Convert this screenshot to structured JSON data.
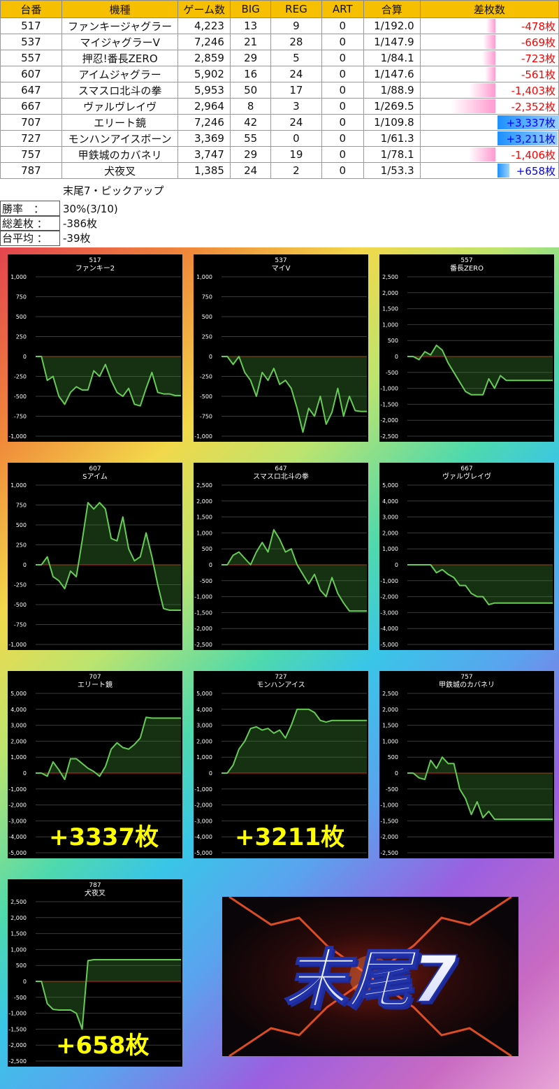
{
  "table": {
    "headers": [
      "台番",
      "機種",
      "ゲーム数",
      "BIG",
      "REG",
      "ART",
      "合算",
      "差枚数"
    ],
    "rows": [
      {
        "no": "517",
        "model": "ファンキージャグラー",
        "games": "4,223",
        "big": "13",
        "reg": "9",
        "art": "0",
        "combined": "1/192.0",
        "diff": "-478枚",
        "diffValue": -478
      },
      {
        "no": "537",
        "model": "マイジャグラーV",
        "games": "7,246",
        "big": "21",
        "reg": "28",
        "art": "0",
        "combined": "1/147.9",
        "diff": "-669枚",
        "diffValue": -669
      },
      {
        "no": "557",
        "model": "押忍!番長ZERO",
        "games": "2,859",
        "big": "29",
        "reg": "5",
        "art": "0",
        "combined": "1/84.1",
        "diff": "-723枚",
        "diffValue": -723
      },
      {
        "no": "607",
        "model": "アイムジャグラー",
        "games": "5,902",
        "big": "16",
        "reg": "24",
        "art": "0",
        "combined": "1/147.6",
        "diff": "-561枚",
        "diffValue": -561
      },
      {
        "no": "647",
        "model": "スマスロ北斗の拳",
        "games": "5,953",
        "big": "50",
        "reg": "17",
        "art": "0",
        "combined": "1/88.9",
        "diff": "-1,403枚",
        "diffValue": -1403
      },
      {
        "no": "667",
        "model": "ヴァルヴレイヴ",
        "games": "2,964",
        "big": "8",
        "reg": "3",
        "art": "0",
        "combined": "1/269.5",
        "diff": "-2,352枚",
        "diffValue": -2352
      },
      {
        "no": "707",
        "model": "エリート鏡",
        "games": "7,246",
        "big": "42",
        "reg": "24",
        "art": "0",
        "combined": "1/109.8",
        "diff": "+3,337枚",
        "diffValue": 3337
      },
      {
        "no": "727",
        "model": "モンハンアイスボーン",
        "games": "3,369",
        "big": "55",
        "reg": "0",
        "art": "0",
        "combined": "1/61.3",
        "diff": "+3,211枚",
        "diffValue": 3211
      },
      {
        "no": "757",
        "model": "甲鉄城のカバネリ",
        "games": "3,747",
        "big": "29",
        "reg": "19",
        "art": "0",
        "combined": "1/78.1",
        "diff": "-1,406枚",
        "diffValue": -1406
      },
      {
        "no": "787",
        "model": "犬夜叉",
        "games": "1,385",
        "big": "24",
        "reg": "2",
        "art": "0",
        "combined": "1/53.3",
        "diff": "+658枚",
        "diffValue": 658
      }
    ]
  },
  "summary": {
    "title": "末尾7・ピックアップ",
    "rows": [
      {
        "label": "勝率　：",
        "value": "30%(3/10)"
      },
      {
        "label": "総差枚 ：",
        "value": "-386枚"
      },
      {
        "label": "台平均 ：",
        "value": "-39枚"
      }
    ]
  },
  "colors": {
    "header": "#f6c000",
    "negative": "#ff0000",
    "positive": "#0000ff",
    "line": "#66cc55",
    "zero": "#cc2222"
  },
  "chart_data": [
    {
      "type": "line",
      "id": "517",
      "title": "ファンキー2",
      "ylim": [
        -1000,
        1000
      ],
      "yticks": [
        1000,
        750,
        500,
        250,
        0,
        -250,
        -500,
        -750,
        -1000
      ],
      "x": [
        0,
        4,
        8,
        12,
        16,
        20,
        24,
        28,
        32,
        36,
        40,
        44,
        48,
        52,
        56,
        60,
        64,
        68,
        72,
        76,
        80,
        84,
        88,
        92,
        96,
        100
      ],
      "values": [
        0,
        0,
        -300,
        -250,
        -500,
        -600,
        -450,
        -380,
        -420,
        -420,
        -180,
        -250,
        -100,
        -300,
        -450,
        -500,
        -400,
        -600,
        -620,
        -400,
        -200,
        -450,
        -470,
        -470,
        -490,
        -490
      ]
    },
    {
      "type": "line",
      "id": "537",
      "title": "マイV",
      "ylim": [
        -1000,
        1000
      ],
      "yticks": [
        1000,
        750,
        500,
        250,
        0,
        -250,
        -500,
        -750,
        -1000
      ],
      "x": [
        0,
        4,
        8,
        12,
        16,
        20,
        24,
        28,
        32,
        36,
        40,
        44,
        48,
        52,
        56,
        60,
        64,
        68,
        72,
        76,
        80,
        84,
        88,
        92,
        96,
        100
      ],
      "values": [
        0,
        0,
        -100,
        0,
        -200,
        -300,
        -500,
        -200,
        -300,
        -150,
        -350,
        -300,
        -400,
        -650,
        -950,
        -650,
        -750,
        -500,
        -850,
        -700,
        -400,
        -750,
        -500,
        -680,
        -690,
        -690
      ]
    },
    {
      "type": "line",
      "id": "557",
      "title": "番長ZERO",
      "ylim": [
        -2500,
        2500
      ],
      "yticks": [
        2500,
        2000,
        1500,
        1000,
        500,
        0,
        -500,
        -1000,
        -1500,
        -2000,
        -2500
      ],
      "x": [
        0,
        4,
        8,
        12,
        16,
        20,
        24,
        28,
        32,
        36,
        40,
        44,
        48,
        52,
        56,
        60,
        64,
        68,
        72,
        76,
        80,
        84,
        88,
        92,
        96,
        100
      ],
      "values": [
        0,
        0,
        -100,
        150,
        50,
        350,
        200,
        -200,
        -500,
        -800,
        -1100,
        -1200,
        -1200,
        -1200,
        -700,
        -1000,
        -600,
        -750,
        -750,
        -750,
        -750,
        -750,
        -750,
        -750,
        -750,
        -750
      ]
    },
    {
      "type": "line",
      "id": "607",
      "title": "Sアイム",
      "ylim": [
        -1000,
        1000
      ],
      "yticks": [
        1000,
        750,
        500,
        250,
        0,
        -250,
        -500,
        -750,
        -1000
      ],
      "x": [
        0,
        4,
        8,
        12,
        16,
        20,
        24,
        28,
        32,
        36,
        40,
        44,
        48,
        52,
        56,
        60,
        64,
        68,
        72,
        76,
        80,
        84,
        88,
        92,
        96,
        100
      ],
      "values": [
        0,
        0,
        100,
        -150,
        -200,
        -300,
        -80,
        -150,
        300,
        780,
        700,
        780,
        700,
        330,
        300,
        600,
        200,
        50,
        100,
        400,
        100,
        -250,
        -550,
        -570,
        -570,
        -570
      ]
    },
    {
      "type": "line",
      "id": "647",
      "title": "スマスロ北斗の拳",
      "ylim": [
        -2500,
        2500
      ],
      "yticks": [
        2500,
        2000,
        1500,
        1000,
        500,
        0,
        -500,
        -1000,
        -1500,
        -2000,
        -2500
      ],
      "x": [
        0,
        4,
        8,
        12,
        16,
        20,
        24,
        28,
        32,
        36,
        40,
        44,
        48,
        52,
        56,
        60,
        64,
        68,
        72,
        76,
        80,
        84,
        88,
        92,
        96,
        100
      ],
      "values": [
        0,
        0,
        300,
        400,
        200,
        0,
        400,
        700,
        400,
        1100,
        800,
        400,
        500,
        0,
        -300,
        -600,
        -300,
        -800,
        -1000,
        -400,
        -900,
        -1200,
        -1450,
        -1450,
        -1450,
        -1450
      ]
    },
    {
      "type": "line",
      "id": "667",
      "title": "ヴァルヴレイヴ",
      "ylim": [
        -5000,
        5000
      ],
      "yticks": [
        5000,
        4000,
        3000,
        2000,
        1000,
        0,
        -1000,
        -2000,
        -3000,
        -4000,
        -5000
      ],
      "x": [
        0,
        4,
        8,
        12,
        16,
        20,
        24,
        28,
        32,
        36,
        40,
        44,
        48,
        52,
        56,
        60,
        64,
        68,
        72,
        76,
        80,
        84,
        88,
        92,
        96,
        100
      ],
      "values": [
        0,
        0,
        0,
        0,
        0,
        -500,
        -300,
        -600,
        -800,
        -1300,
        -1300,
        -1800,
        -2000,
        -2000,
        -2500,
        -2400,
        -2400,
        -2400,
        -2400,
        -2400,
        -2400,
        -2400,
        -2400,
        -2400,
        -2400,
        -2400
      ]
    },
    {
      "type": "line",
      "id": "707",
      "title": "エリート鏡",
      "ylim": [
        -5000,
        5000
      ],
      "yticks": [
        5000,
        4000,
        3000,
        2000,
        1000,
        0,
        -1000,
        -2000,
        -3000,
        -4000,
        -5000
      ],
      "x": [
        0,
        4,
        8,
        12,
        16,
        20,
        24,
        28,
        32,
        36,
        40,
        44,
        48,
        52,
        56,
        60,
        64,
        68,
        72,
        76,
        80,
        84,
        88,
        92,
        96,
        100
      ],
      "values": [
        0,
        0,
        -200,
        700,
        200,
        -400,
        900,
        900,
        600,
        300,
        100,
        -200,
        400,
        1500,
        1900,
        1600,
        1500,
        1800,
        2200,
        3500,
        3450,
        3450,
        3450,
        3450,
        3450,
        3450
      ]
    },
    {
      "type": "line",
      "id": "727",
      "title": "モンハンアイス",
      "ylim": [
        -5000,
        5000
      ],
      "yticks": [
        5000,
        4000,
        3000,
        2000,
        1000,
        0,
        -1000,
        -2000,
        -3000,
        -4000,
        -5000
      ],
      "x": [
        0,
        4,
        8,
        12,
        16,
        20,
        24,
        28,
        32,
        36,
        40,
        44,
        48,
        52,
        56,
        60,
        64,
        68,
        72,
        76,
        80,
        84,
        88,
        92,
        96,
        100
      ],
      "values": [
        0,
        0,
        500,
        1500,
        2000,
        2800,
        2900,
        2700,
        2800,
        2500,
        2700,
        2200,
        3000,
        4000,
        4000,
        4000,
        3800,
        3300,
        3200,
        3300,
        3300,
        3300,
        3300,
        3300,
        3300,
        3300
      ]
    },
    {
      "type": "line",
      "id": "757",
      "title": "甲鉄城のカバネリ",
      "ylim": [
        -2500,
        2500
      ],
      "yticks": [
        2500,
        2000,
        1500,
        1000,
        500,
        0,
        -500,
        -1000,
        -1500,
        -2000,
        -2500
      ],
      "x": [
        0,
        4,
        8,
        12,
        16,
        20,
        24,
        28,
        32,
        36,
        40,
        44,
        48,
        52,
        56,
        60,
        64,
        68,
        72,
        76,
        80,
        84,
        88,
        92,
        96,
        100
      ],
      "values": [
        0,
        0,
        -150,
        -200,
        400,
        150,
        500,
        300,
        300,
        -500,
        -800,
        -1300,
        -900,
        -1400,
        -1200,
        -1450,
        -1450,
        -1450,
        -1450,
        -1450,
        -1450,
        -1450,
        -1450,
        -1450,
        -1450,
        -1450
      ]
    },
    {
      "type": "line",
      "id": "787",
      "title": "犬夜叉",
      "ylim": [
        -2500,
        2500
      ],
      "yticks": [
        2500,
        2000,
        1500,
        1000,
        500,
        0,
        -500,
        -1000,
        -1500,
        -2000,
        -2500
      ],
      "x": [
        0,
        4,
        8,
        12,
        16,
        20,
        24,
        28,
        32,
        36,
        40,
        44,
        48,
        52,
        56,
        60,
        64,
        68,
        72,
        76,
        80,
        84,
        88,
        92,
        96,
        100
      ],
      "values": [
        0,
        0,
        -700,
        -880,
        -900,
        -900,
        -900,
        -1000,
        -1500,
        650,
        680,
        680,
        680,
        680,
        680,
        680,
        680,
        680,
        680,
        680,
        680,
        680,
        680,
        680,
        680,
        680
      ]
    }
  ],
  "big_labels": {
    "707": "+3337枚",
    "727": "+3211枚",
    "787": "+658枚"
  },
  "logo_text": "末尾7"
}
